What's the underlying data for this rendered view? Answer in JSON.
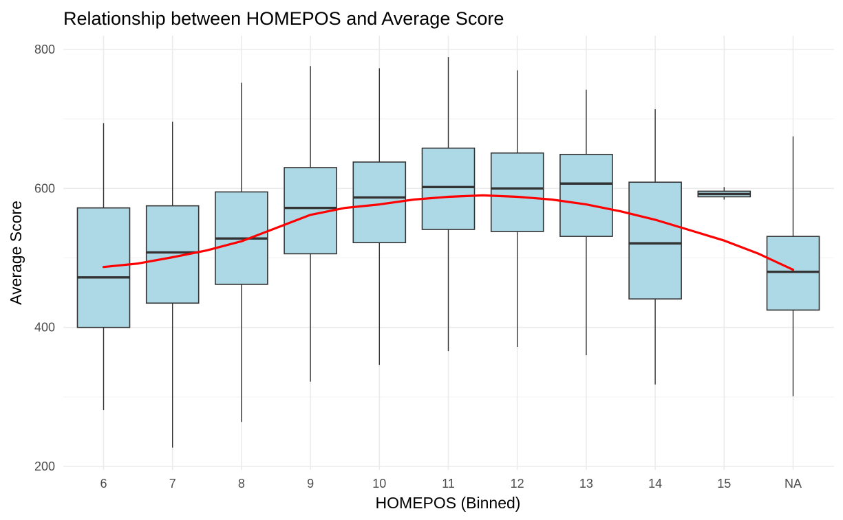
{
  "chart_data": {
    "type": "boxplot",
    "title": "Relationship between HOMEPOS and Average Score",
    "xlabel": "HOMEPOS (Binned)",
    "ylabel": "Average Score",
    "categories": [
      "6",
      "7",
      "8",
      "9",
      "10",
      "11",
      "12",
      "13",
      "14",
      "15",
      "NA"
    ],
    "ylim": [
      190,
      800
    ],
    "yticks": [
      200,
      400,
      600,
      800
    ],
    "grid": true,
    "box_fill": "#add8e6",
    "box_stroke": "#333333",
    "smooth_color": "#ff0000",
    "boxes": [
      {
        "min": 281,
        "q1": 400,
        "median": 472,
        "q3": 572,
        "max": 694
      },
      {
        "min": 227,
        "q1": 435,
        "median": 508,
        "q3": 575,
        "max": 696
      },
      {
        "min": 264,
        "q1": 462,
        "median": 528,
        "q3": 595,
        "max": 752
      },
      {
        "min": 322,
        "q1": 506,
        "median": 572,
        "q3": 630,
        "max": 776
      },
      {
        "min": 346,
        "q1": 522,
        "median": 587,
        "q3": 638,
        "max": 773
      },
      {
        "min": 366,
        "q1": 541,
        "median": 602,
        "q3": 658,
        "max": 789
      },
      {
        "min": 372,
        "q1": 538,
        "median": 600,
        "q3": 651,
        "max": 770
      },
      {
        "min": 360,
        "q1": 531,
        "median": 607,
        "q3": 649,
        "max": 742
      },
      {
        "min": 318,
        "q1": 441,
        "median": 521,
        "q3": 609,
        "max": 714
      },
      {
        "min": 584,
        "q1": 588,
        "median": 592,
        "q3": 596,
        "max": 602
      },
      {
        "min": 301,
        "q1": 425,
        "median": 480,
        "q3": 531,
        "max": 675
      }
    ],
    "smooth_line": {
      "x": [
        1,
        1.5,
        2,
        2.5,
        3,
        3.5,
        4,
        4.5,
        5,
        5.5,
        6,
        6.5,
        7,
        7.5,
        8,
        8.5,
        9,
        9.5,
        10,
        10.5,
        11
      ],
      "y": [
        487,
        492,
        501,
        511,
        524,
        543,
        562,
        572,
        577,
        584,
        588,
        590,
        588,
        584,
        577,
        567,
        555,
        540,
        525,
        506,
        483
      ]
    }
  }
}
